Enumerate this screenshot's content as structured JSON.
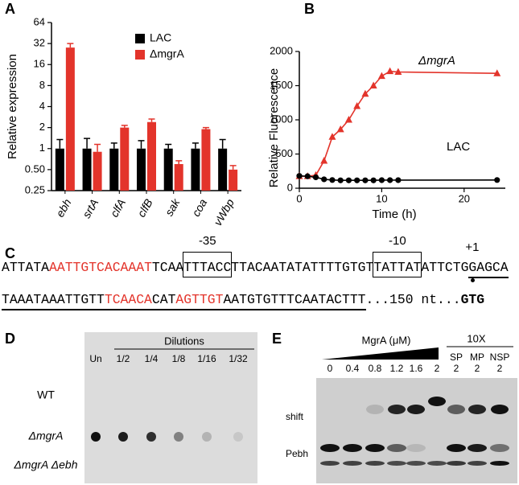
{
  "panel_labels": [
    "A",
    "B",
    "C",
    "D",
    "E"
  ],
  "chart_data": [
    {
      "type": "bar",
      "y_label": "Relative expression",
      "categories": [
        "ebh",
        "srtA",
        "clfA",
        "clfB",
        "sak",
        "coa",
        "vWbp"
      ],
      "series": [
        {
          "name": "LAC",
          "color": "#000000",
          "values": [
            1,
            1,
            1,
            1,
            1,
            1,
            1
          ],
          "errors": [
            0.35,
            0.4,
            0.2,
            0.3,
            0.15,
            0.2,
            0.35
          ]
        },
        {
          "name": "ΔmgrA",
          "color": "#e3342b",
          "values": [
            28,
            0.9,
            2.0,
            2.4,
            0.6,
            1.9,
            0.5
          ],
          "errors": [
            4,
            0.25,
            0.15,
            0.25,
            0.07,
            0.1,
            0.07
          ]
        }
      ],
      "ylim": [
        0.25,
        64
      ],
      "ylog": true,
      "yticks": [
        0.25,
        {
          "value": 0.5,
          "label": "0.50"
        },
        1,
        2,
        4,
        8,
        16,
        32,
        64
      ]
    },
    {
      "type": "line",
      "x_label": "Time (h)",
      "y_label": "Relative Fluorescence",
      "x": [
        0,
        1,
        2,
        3,
        4,
        5,
        6,
        7,
        8,
        9,
        10,
        11,
        12,
        24
      ],
      "series": [
        {
          "name": "ΔmgrA",
          "color": "#e3342b",
          "marker": "triangle",
          "values": [
            175,
            175,
            190,
            400,
            750,
            860,
            1000,
            1200,
            1380,
            1500,
            1640,
            1710,
            1700,
            1680
          ]
        },
        {
          "name": "LAC",
          "color": "#000000",
          "marker": "circle",
          "values": [
            180,
            175,
            160,
            130,
            120,
            115,
            115,
            115,
            115,
            115,
            118,
            118,
            118,
            120
          ]
        }
      ],
      "xlim": [
        0,
        25
      ],
      "xticks": [
        0,
        10,
        20
      ],
      "ylim": [
        0,
        2000
      ],
      "yticks": [
        0,
        500,
        1000,
        1500,
        2000
      ]
    }
  ],
  "sequence": {
    "lines": [
      [
        {
          "text": "ATTATA"
        },
        {
          "text": "AATTGTCACAAAT",
          "color": "#e3342b"
        },
        {
          "text": "TCAA"
        },
        {
          "text": "TTTACC",
          "style": "boxed",
          "label": "-35"
        },
        {
          "text": "TTACAATATATTTTGTGT"
        },
        {
          "text": "TATTAT",
          "style": "boxed",
          "label": "-10"
        },
        {
          "text": "ATTCTG"
        },
        {
          "text": "GAGCA",
          "style": "underline",
          "label": "+1",
          "dot": true
        }
      ],
      [
        {
          "text": "TAAATAAATTGTT",
          "style": "underline"
        },
        {
          "text": "TCAACA",
          "style": "underline",
          "color": "#e3342b"
        },
        {
          "text": "CAT",
          "style": "underline"
        },
        {
          "text": "AGTTGT",
          "style": "underline",
          "color": "#e3342b"
        },
        {
          "text": "AATGTGTTTCAATACTTT",
          "style": "underline"
        },
        {
          "text": "...150 nt..."
        },
        {
          "text": "GTG",
          "style": "bold"
        }
      ]
    ]
  },
  "dot_blot": {
    "header": "Dilutions",
    "columns": [
      "Un",
      "1/2",
      "1/4",
      "1/8",
      "1/16",
      "1/32"
    ],
    "rows": [
      "WT",
      "ΔmgrA",
      "ΔmgrA Δebh"
    ]
  },
  "gel": {
    "title": "MgrA (μM)",
    "concentrations": [
      0,
      0.4,
      0.8,
      1.2,
      1.6,
      2
    ],
    "competitor_title": "10X",
    "competitors": [
      "SP",
      "MP",
      "NSP"
    ],
    "competitor_concentrations": [
      2,
      2,
      2
    ],
    "bands": [
      "shift",
      "Pebh"
    ]
  }
}
